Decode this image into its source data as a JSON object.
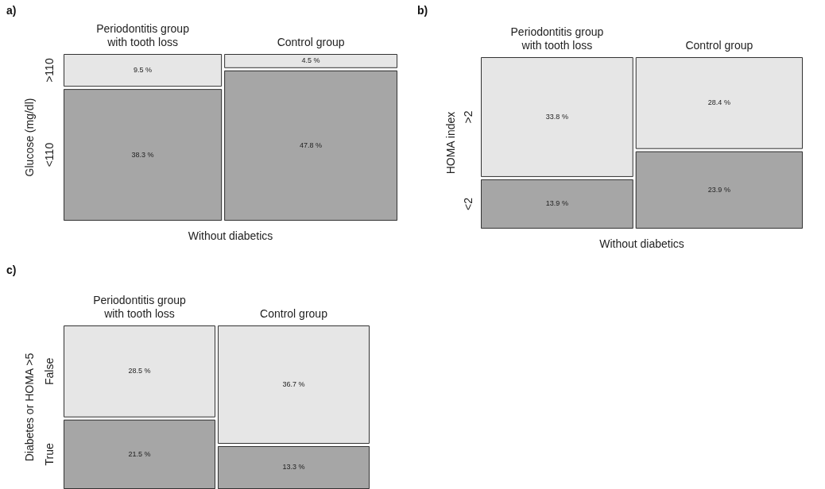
{
  "chart_data": [
    {
      "type": "other",
      "title": "a)",
      "xlabel": "Without diabetics",
      "ylabel": "Glucose (mg/dl)",
      "categories": [
        "Periodontitis group\nwith tooth loss",
        "Control group"
      ],
      "series": [
        {
          "name": ">110",
          "color": "#e6e6e6",
          "values": [
            9.5,
            4.5
          ],
          "value_labels": [
            "9.5 %",
            "4.5 %"
          ]
        },
        {
          "name": "<110",
          "color": "#a6a6a6",
          "values": [
            38.3,
            47.8
          ],
          "value_labels": [
            "38.3 %",
            "47.8 %"
          ]
        }
      ]
    },
    {
      "type": "other",
      "title": "b)",
      "xlabel": "Without diabetics",
      "ylabel": "HOMA index",
      "categories": [
        "Periodontitis group\nwith tooth loss",
        "Control group"
      ],
      "series": [
        {
          "name": ">2",
          "color": "#e6e6e6",
          "values": [
            33.8,
            28.4
          ],
          "value_labels": [
            "33.8 %",
            "28.4 %"
          ]
        },
        {
          "name": "<2",
          "color": "#a6a6a6",
          "values": [
            13.9,
            23.9
          ],
          "value_labels": [
            "13.9 %",
            "23.9 %"
          ]
        }
      ]
    },
    {
      "type": "other",
      "title": "c)",
      "ylabel": "Diabetes or HOMA >5",
      "categories": [
        "Periodontitis group\nwith tooth loss",
        "Control group"
      ],
      "series": [
        {
          "name": "False",
          "color": "#e6e6e6",
          "values": [
            28.5,
            36.7
          ],
          "value_labels": [
            "28.5 %",
            "36.7 %"
          ]
        },
        {
          "name": "True",
          "color": "#a6a6a6",
          "values": [
            21.5,
            13.3
          ],
          "value_labels": [
            "21.5 %",
            "13.3 %"
          ]
        }
      ]
    }
  ]
}
